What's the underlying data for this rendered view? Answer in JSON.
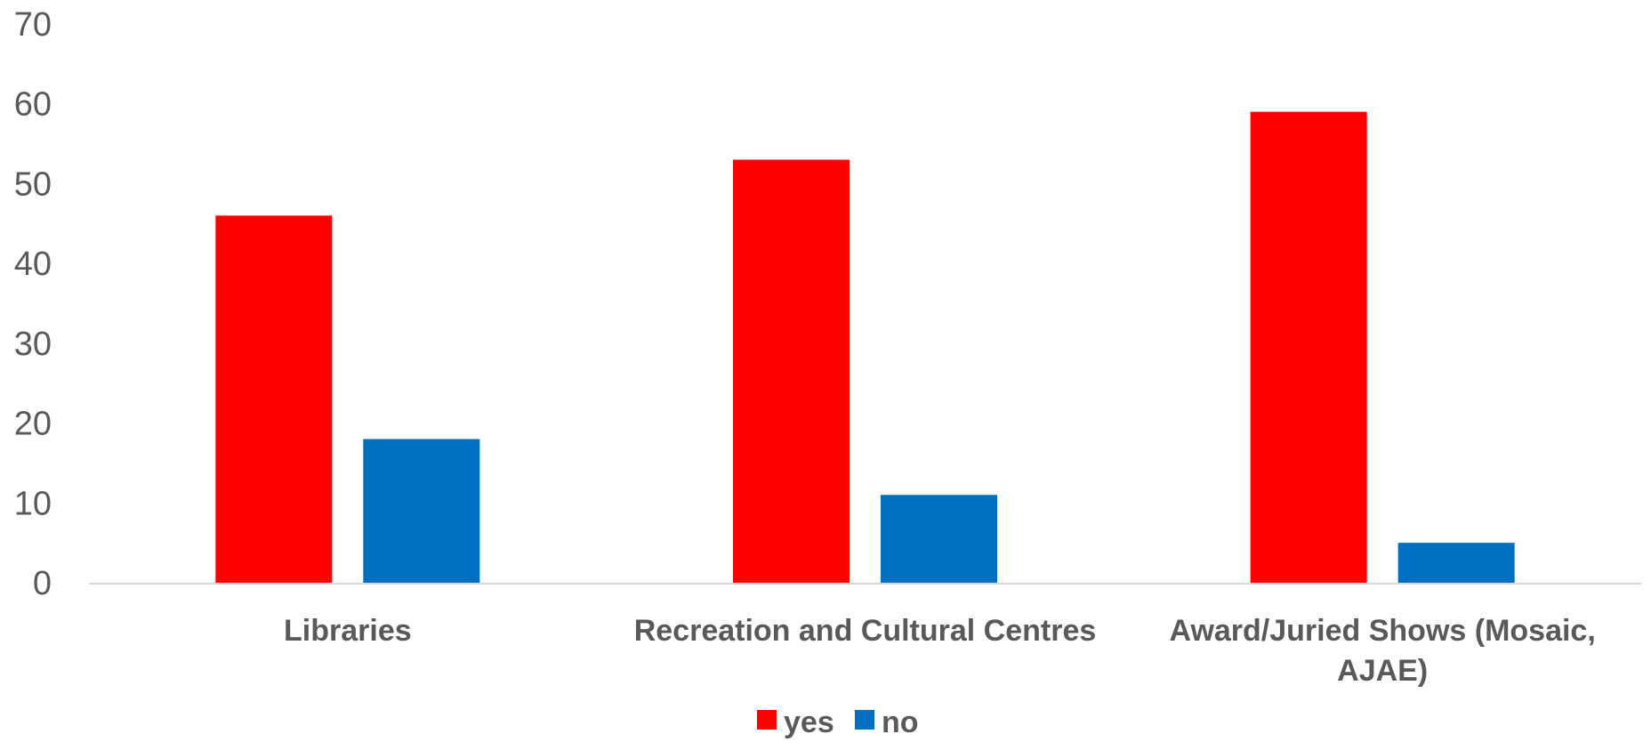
{
  "chart_data": {
    "type": "bar",
    "title": "",
    "xlabel": "",
    "ylabel": "",
    "categories": [
      [
        "Libraries"
      ],
      [
        "Recreation and Cultural Centres"
      ],
      [
        "Award/Juried Shows (Mosaic,",
        "AJAE)"
      ]
    ],
    "series": [
      {
        "name": "yes",
        "color": "#FF0000",
        "values": [
          46,
          53,
          59
        ]
      },
      {
        "name": "no",
        "color": "#0070C0",
        "values": [
          18,
          11,
          5
        ]
      }
    ],
    "ylim": [
      0,
      70
    ],
    "yticks": [
      0,
      10,
      20,
      30,
      40,
      50,
      60,
      70
    ],
    "grid": false,
    "legend_position": "bottom",
    "axis_color": "#D9D9D9"
  }
}
